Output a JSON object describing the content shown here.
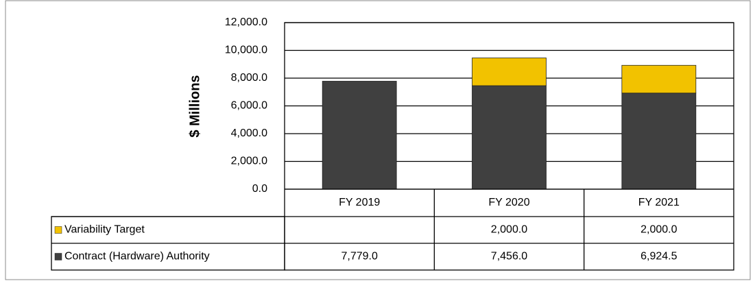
{
  "chart_data": {
    "type": "stacked_bar",
    "axis_label": "$ Millions",
    "categories": [
      "FY 2019",
      "FY 2020",
      "FY 2021"
    ],
    "series": [
      {
        "name": "Contract (Hardware) Authority",
        "color": "#404040",
        "values": [
          7779.0,
          7456.0,
          6924.5
        ],
        "value_labels": [
          "7,779.0",
          "7,456.0",
          "6,924.5"
        ]
      },
      {
        "name": "Variability Target",
        "color": "#f2c200",
        "values": [
          null,
          2000.0,
          2000.0
        ],
        "value_labels": [
          null,
          "2,000.0",
          "2,000.0"
        ]
      }
    ],
    "ylim": [
      0,
      12000
    ],
    "yticks": [
      {
        "value": 0,
        "label": "0.0"
      },
      {
        "value": 2000,
        "label": "2,000.0"
      },
      {
        "value": 4000,
        "label": "4,000.0"
      },
      {
        "value": 6000,
        "label": "6,000.0"
      },
      {
        "value": 8000,
        "label": "8,000.0"
      },
      {
        "value": 10000,
        "label": "10,000.0"
      },
      {
        "value": 12000,
        "label": "12,000.0"
      }
    ],
    "grid": true
  }
}
